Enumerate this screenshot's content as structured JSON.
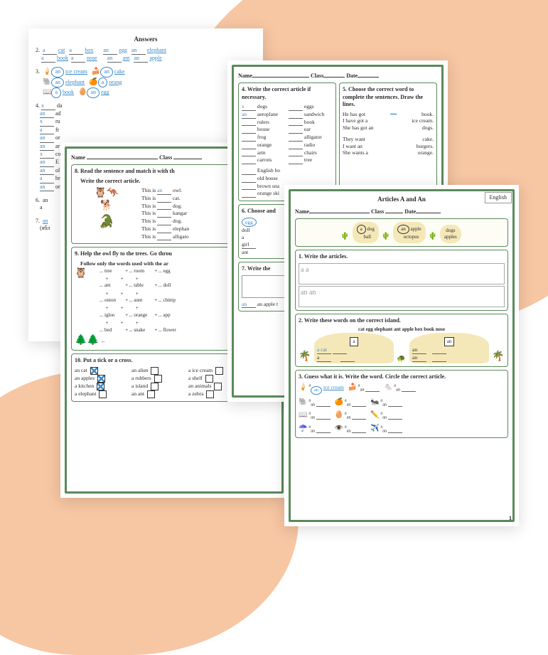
{
  "answers": {
    "title": "Answers",
    "row2": [
      {
        "art": "a",
        "word": "cat"
      },
      {
        "art": "a",
        "word": "box"
      },
      {
        "art": "an",
        "word": "egg"
      },
      {
        "art": "an",
        "word": "elephant"
      }
    ],
    "row2b": [
      {
        "art": "a",
        "word": "book"
      },
      {
        "art": "a",
        "word": "nose"
      },
      {
        "art": "an",
        "word": "ant"
      },
      {
        "art": "an",
        "word": "apple"
      }
    ],
    "row3": [
      {
        "art": "an",
        "word": "ice cream"
      },
      {
        "art": "an",
        "word": "cake"
      }
    ],
    "row3b": [
      {
        "art": "an",
        "word": "elephant"
      },
      {
        "art": "a",
        "word": "orang"
      }
    ],
    "row3c": [
      {
        "art": "a",
        "word": "book"
      },
      {
        "art": "an",
        "word": "egg"
      }
    ],
    "row4": [
      {
        "art": "x",
        "word": "da"
      },
      {
        "art": "an",
        "word": "ad"
      },
      {
        "art": "x",
        "word": "ru"
      },
      {
        "art": "a",
        "word": "fr"
      },
      {
        "art": "an",
        "word": "or"
      },
      {
        "art": "an",
        "word": "ar"
      },
      {
        "art": "x",
        "word": "co"
      },
      {
        "art": "an",
        "word": "E"
      },
      {
        "art": "an",
        "word": "ol"
      },
      {
        "art": "a",
        "word": "br"
      },
      {
        "art": "an",
        "word": "or"
      }
    ],
    "num6": "6.",
    "num7": "7.",
    "cyrillic": "(ябл"
  },
  "middle1": {
    "nameLabel": "Name",
    "classLabel": "Class",
    "sec8": {
      "title": "8. Read the sentence and match it with th",
      "subtitle": "Write the correct article.",
      "lines": [
        {
          "pre": "This is",
          "art": "an",
          "word": "owl."
        },
        {
          "pre": "This is",
          "art": "",
          "word": "cat."
        },
        {
          "pre": "This is",
          "art": "",
          "word": "dog."
        },
        {
          "pre": "This is",
          "art": "",
          "word": "kangar"
        },
        {
          "pre": "This is",
          "art": "",
          "word": "dog."
        },
        {
          "pre": "This is",
          "art": "",
          "word": "elephan"
        },
        {
          "pre": "This is",
          "art": "",
          "word": "alligato"
        }
      ]
    },
    "sec9": {
      "title": "9. Help the owl fly to the trees. Go throu",
      "subtitle": "Follow only the words used with the ar",
      "grid": [
        [
          "... tree",
          "... room",
          "... egg"
        ],
        [
          "... ant",
          "... table",
          "... doll"
        ],
        [
          "... onion",
          "... aunt",
          "... chimp"
        ],
        [
          "... igloo",
          "... orange",
          "... app"
        ],
        [
          "... bed",
          "... snake",
          "... flower"
        ]
      ]
    },
    "sec10": {
      "title": "10. Put a tick or a cross.",
      "items": [
        {
          "text": "an cat",
          "checked": true
        },
        {
          "text": "an alien",
          "checked": false
        },
        {
          "text": "a ice cream",
          "checked": false
        },
        {
          "text": "an apples",
          "checked": true
        },
        {
          "text": "a rubbers",
          "checked": false
        },
        {
          "text": "a shelf",
          "checked": false
        },
        {
          "text": "a kitchen",
          "checked": true
        },
        {
          "text": "a island",
          "checked": false
        },
        {
          "text": "an animals",
          "checked": false
        },
        {
          "text": "a elephant",
          "checked": false
        },
        {
          "text": "an ant",
          "checked": false
        },
        {
          "text": "a zebra",
          "checked": false
        }
      ]
    }
  },
  "middle2": {
    "nameLabel": "Name",
    "classLabel": "Class",
    "dateLabel": "Date",
    "sec4": {
      "title": "4. Write the correct article if necessary.",
      "left": [
        {
          "art": "x",
          "word": "dogs"
        },
        {
          "art": "an",
          "word": "aeroplane"
        },
        {
          "art": "",
          "word": "rulers"
        },
        {
          "art": "",
          "word": "house"
        },
        {
          "art": "",
          "word": "frog"
        },
        {
          "art": "",
          "word": "orange"
        },
        {
          "art": "",
          "word": "arm"
        },
        {
          "art": "",
          "word": "carrots"
        }
      ],
      "right": [
        {
          "word": "eggs"
        },
        {
          "word": "sandwich"
        },
        {
          "word": "book"
        },
        {
          "word": "ear"
        },
        {
          "word": "alligator"
        },
        {
          "word": "radio"
        },
        {
          "word": "chairs"
        },
        {
          "word": "tree"
        }
      ],
      "bottom": [
        "English bo",
        "old house",
        "brown sna",
        "orange ski"
      ]
    },
    "sec5": {
      "title": "5. Choose the correct word to complete the sentences. Draw the lines.",
      "lines": [
        {
          "left": "He has got",
          "right": "book."
        },
        {
          "left": "I have got a",
          "right": "ice cream."
        },
        {
          "left": "She has got an",
          "right": "dogs."
        },
        {
          "left": "They want",
          "right": "cake."
        },
        {
          "left": "I want an",
          "right": "burgers."
        },
        {
          "left": "She wants a",
          "right": "orange."
        }
      ]
    },
    "sec6": {
      "title": "6. Choose and",
      "items": [
        "egg",
        "doll",
        "a",
        "girl",
        "ant"
      ]
    },
    "sec7": {
      "title": "7. Write the",
      "bottom": "an  apple t"
    }
  },
  "front": {
    "title": "Articles A and An",
    "badge": "English",
    "nameLabel": "Name",
    "classLabel": "Class",
    "dateLabel": "Date",
    "clouds": [
      {
        "art": "a",
        "words": [
          "dog",
          "ball"
        ]
      },
      {
        "art": "an",
        "words": [
          "apple",
          "octopus"
        ]
      },
      {
        "art": "",
        "words": [
          "dogs",
          "apples"
        ]
      }
    ],
    "sec1": {
      "title": "1. Write the articles.",
      "line1": "a  a",
      "line2": "an  an"
    },
    "sec2": {
      "title": "2. Write these words on the correct island.",
      "words": "cat  egg  elephant  ant  apple  box  book  nose",
      "island1": {
        "flag": "a",
        "items": [
          "a cat",
          "a",
          "a"
        ]
      },
      "island2": {
        "flag": "an",
        "items": [
          "an",
          "an",
          "an"
        ]
      }
    },
    "sec3": {
      "title": "3. Guess what it is. Write the word. Circle the correct article.",
      "first": {
        "art": "an",
        "word": "ice cream"
      },
      "rows": 4
    },
    "pageNum": "1"
  }
}
